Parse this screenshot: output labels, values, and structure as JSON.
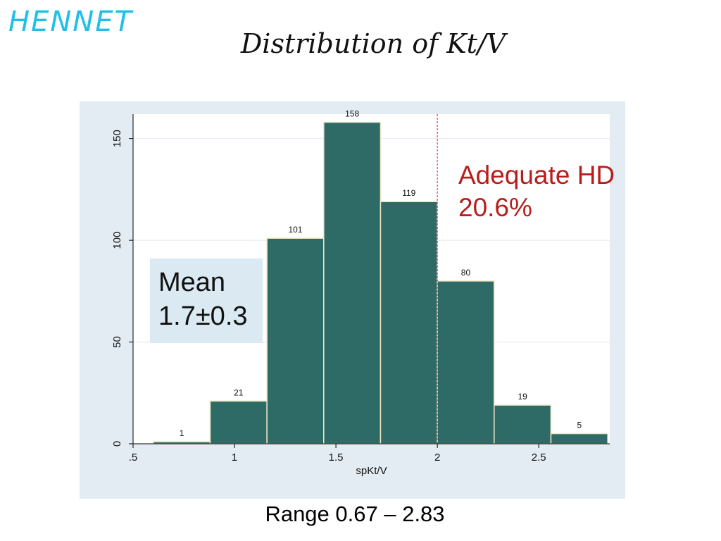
{
  "brand": "HENNET",
  "title": "Distribution of Kt/V",
  "footer": "Range 0.67 – 2.83",
  "mean_box": {
    "line1": "Mean",
    "line2": "1.7±0.3"
  },
  "threshold_annotation": {
    "line1": "Adequate HD",
    "line2": "20.6%"
  },
  "chart_data": {
    "type": "bar",
    "xlabel": "spKt/V",
    "ylabel": "",
    "bin_edges": [
      0.6,
      0.88,
      1.16,
      1.44,
      1.72,
      2.0,
      2.28,
      2.56,
      2.84
    ],
    "values": [
      1,
      21,
      101,
      158,
      119,
      80,
      19,
      5
    ],
    "xlim": [
      0.5,
      2.85
    ],
    "ylim": [
      0,
      162
    ],
    "x_ticks": [
      0.5,
      1,
      1.5,
      2,
      2.5
    ],
    "x_tick_labels": [
      ".5",
      "1",
      "1.5",
      "2",
      "2.5"
    ],
    "y_ticks": [
      0,
      50,
      100,
      150
    ],
    "y_tick_labels": [
      "0",
      "50",
      "100",
      "150"
    ],
    "threshold_x": 2.0,
    "grid": "horizontal",
    "colors": {
      "bar_fill": "#2e6b66",
      "bar_stroke": "#ece8c6",
      "threshold": "#e05050",
      "grid": "#e6ecf1",
      "panel_bg": "#e4ecf3",
      "plot_bg": "#ffffff"
    }
  }
}
